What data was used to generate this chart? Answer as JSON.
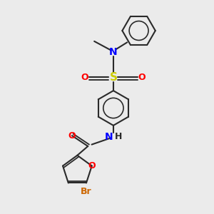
{
  "bg_color": "#ebebeb",
  "bond_color": "#2a2a2a",
  "bond_width": 1.5,
  "colors": {
    "C": "#2a2a2a",
    "N": "#0000ff",
    "O": "#ff0000",
    "S": "#cccc00",
    "Br": "#cc6600",
    "H": "#2a2a2a"
  },
  "font_size": 9
}
